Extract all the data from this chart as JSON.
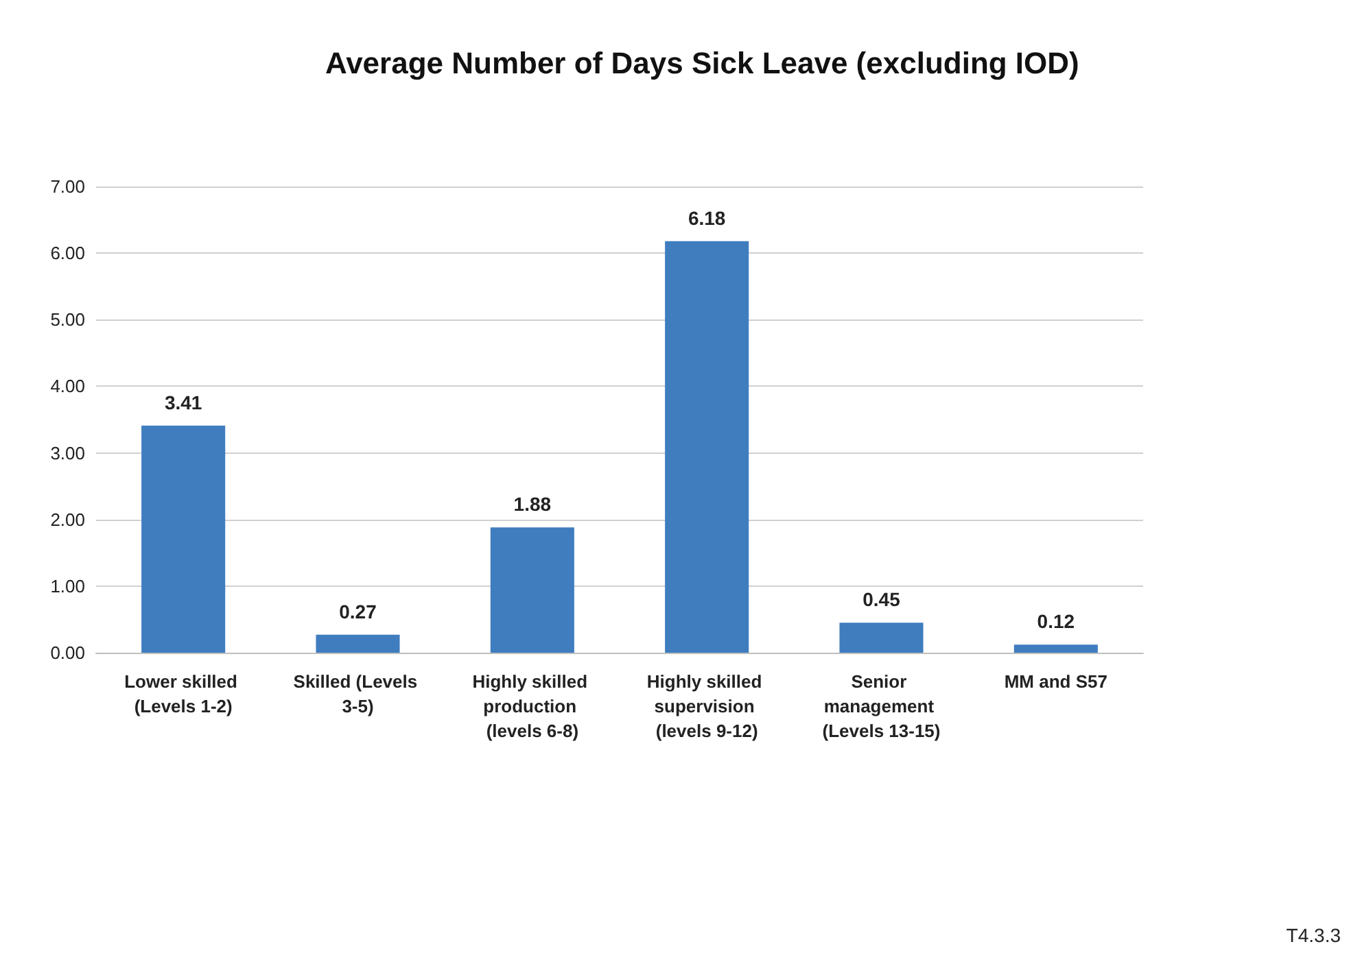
{
  "chart_data": {
    "type": "bar",
    "title": "Average Number of Days Sick Leave (excluding IOD)",
    "categories": [
      "Lower skilled (Levels 1-2)",
      "Skilled (Levels 3-5)",
      "Highly skilled production (levels 6-8)",
      "Highly skilled supervision (levels 9-12)",
      "Senior management (Levels 13-15)",
      "MM and S57"
    ],
    "values": [
      3.41,
      0.27,
      1.88,
      6.18,
      0.45,
      0.12
    ],
    "color": "#3f7dbf",
    "ylim": [
      0,
      7
    ],
    "yticks": [
      {
        "value": 0,
        "label": "0.00"
      },
      {
        "value": 1,
        "label": "1.00"
      },
      {
        "value": 2,
        "label": "2.00"
      },
      {
        "value": 3,
        "label": "3.00"
      },
      {
        "value": 4,
        "label": "4.00"
      },
      {
        "value": 5,
        "label": "5.00"
      },
      {
        "value": 6,
        "label": "6.00"
      },
      {
        "value": 7,
        "label": "7.00"
      }
    ],
    "grid": "y",
    "data_labels": true,
    "annotations": [
      "T4.3.3"
    ]
  }
}
